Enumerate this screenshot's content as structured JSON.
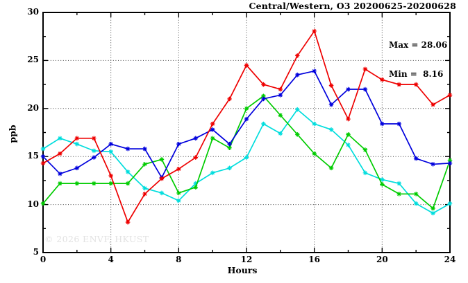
{
  "header": {
    "title": "Central/Western, O3 20200625-20200628"
  },
  "stats": {
    "max_line": "Max = 28.06",
    "min_line": "Min =  8.16"
  },
  "watermark": "© 2026 ENVF, HKUST",
  "chart_data": {
    "type": "line",
    "title": "Central/Western, O3 20200625-20200628",
    "xlabel": "Hours",
    "ylabel": "ppb",
    "xlim": [
      0,
      24
    ],
    "ylim": [
      5,
      30
    ],
    "x_major_ticks": [
      0,
      4,
      8,
      12,
      16,
      20,
      24
    ],
    "x_tick_labels": [
      "0",
      "4",
      "8",
      "12",
      "16",
      "20",
      "24"
    ],
    "x_minor_ticks": [
      2,
      6,
      10,
      14,
      18,
      22
    ],
    "y_major_ticks": [
      5,
      10,
      15,
      20,
      25,
      30
    ],
    "y_tick_labels": [
      "5",
      "10",
      "15",
      "20",
      "25",
      "30"
    ],
    "y_minor_ticks": [
      7.5,
      12.5,
      17.5,
      22.5,
      27.5
    ],
    "x_gridlines": [
      4,
      8,
      12,
      16,
      20
    ],
    "y_gridlines": [
      10,
      15,
      20,
      25
    ],
    "grid_style": "dotted",
    "legend_position": "none",
    "marker": "asterisk",
    "max_value": 28.06,
    "min_value": 8.16,
    "x": [
      0,
      1,
      2,
      3,
      4,
      5,
      6,
      7,
      8,
      9,
      10,
      11,
      12,
      13,
      14,
      15,
      16,
      17,
      18,
      19,
      20,
      21,
      22,
      23,
      24
    ],
    "series": [
      {
        "name": "cyan",
        "color": "#00dddd",
        "values": [
          15.8,
          16.9,
          16.3,
          15.6,
          15.5,
          13.4,
          11.7,
          11.2,
          10.4,
          12.2,
          13.3,
          13.8,
          14.9,
          18.4,
          17.4,
          19.9,
          18.4,
          17.8,
          16.2,
          13.3,
          12.6,
          12.2,
          10.1,
          9.1,
          10.1
        ]
      },
      {
        "name": "green",
        "color": "#00cc00",
        "values": [
          10.1,
          12.2,
          12.2,
          12.2,
          12.2,
          12.2,
          14.2,
          14.7,
          11.2,
          11.8,
          16.9,
          15.9,
          20.0,
          21.3,
          19.3,
          17.3,
          15.3,
          13.8,
          17.3,
          15.7,
          12.1,
          11.1,
          11.1,
          9.6,
          14.6
        ]
      },
      {
        "name": "blue",
        "color": "#0000dd",
        "values": [
          15.0,
          13.2,
          13.8,
          14.9,
          16.3,
          15.8,
          15.8,
          12.8,
          16.3,
          16.9,
          17.8,
          16.3,
          18.9,
          21.0,
          21.4,
          23.5,
          23.9,
          20.4,
          22.0,
          22.0,
          18.4,
          18.4,
          14.8,
          14.2,
          14.3
        ]
      },
      {
        "name": "red",
        "color": "#ee0000",
        "values": [
          14.3,
          15.3,
          16.9,
          16.9,
          13.0,
          8.16,
          11.1,
          12.7,
          13.7,
          14.9,
          18.4,
          21.0,
          24.5,
          22.5,
          22.0,
          25.5,
          28.06,
          22.4,
          18.9,
          24.1,
          23.0,
          22.5,
          22.5,
          20.4,
          21.4
        ]
      }
    ]
  }
}
